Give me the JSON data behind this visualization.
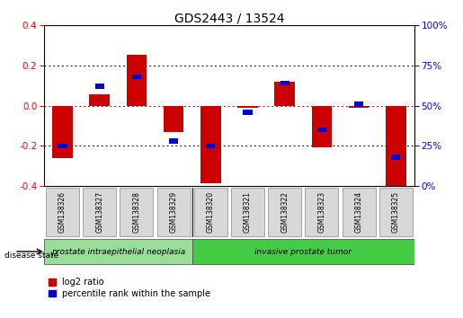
{
  "title": "GDS2443 / 13524",
  "samples": [
    "GSM138326",
    "GSM138327",
    "GSM138328",
    "GSM138329",
    "GSM138320",
    "GSM138321",
    "GSM138322",
    "GSM138323",
    "GSM138324",
    "GSM138325"
  ],
  "log2_ratio": [
    -0.26,
    0.055,
    0.255,
    -0.13,
    -0.385,
    -0.01,
    0.12,
    -0.205,
    -0.01,
    -0.4
  ],
  "percentile": [
    25,
    62,
    68,
    28,
    25,
    46,
    64,
    35,
    51,
    18
  ],
  "bar_color_red": "#CC0000",
  "bar_color_blue": "#0000CC",
  "ylim_left": [
    -0.4,
    0.4
  ],
  "ylim_right": [
    0,
    100
  ],
  "yticks_left": [
    -0.4,
    -0.2,
    0.0,
    0.2,
    0.4
  ],
  "yticks_right": [
    0,
    25,
    50,
    75,
    100
  ],
  "groups": [
    {
      "label": "prostate intraepithelial neoplasia",
      "start": 0,
      "end": 4,
      "color": "#99dd99"
    },
    {
      "label": "invasive prostate tumor",
      "start": 4,
      "end": 10,
      "color": "#44cc44"
    }
  ],
  "disease_state_label": "disease state",
  "legend_red_label": "log2 ratio",
  "legend_blue_label": "percentile rank within the sample",
  "bar_width": 0.55,
  "blue_bar_height": 0.025,
  "blue_bar_width": 0.25,
  "background_color": "#ffffff",
  "plot_bg_color": "#ffffff",
  "zero_line_color": "#cc0000",
  "dotted_line_color": "#000000"
}
